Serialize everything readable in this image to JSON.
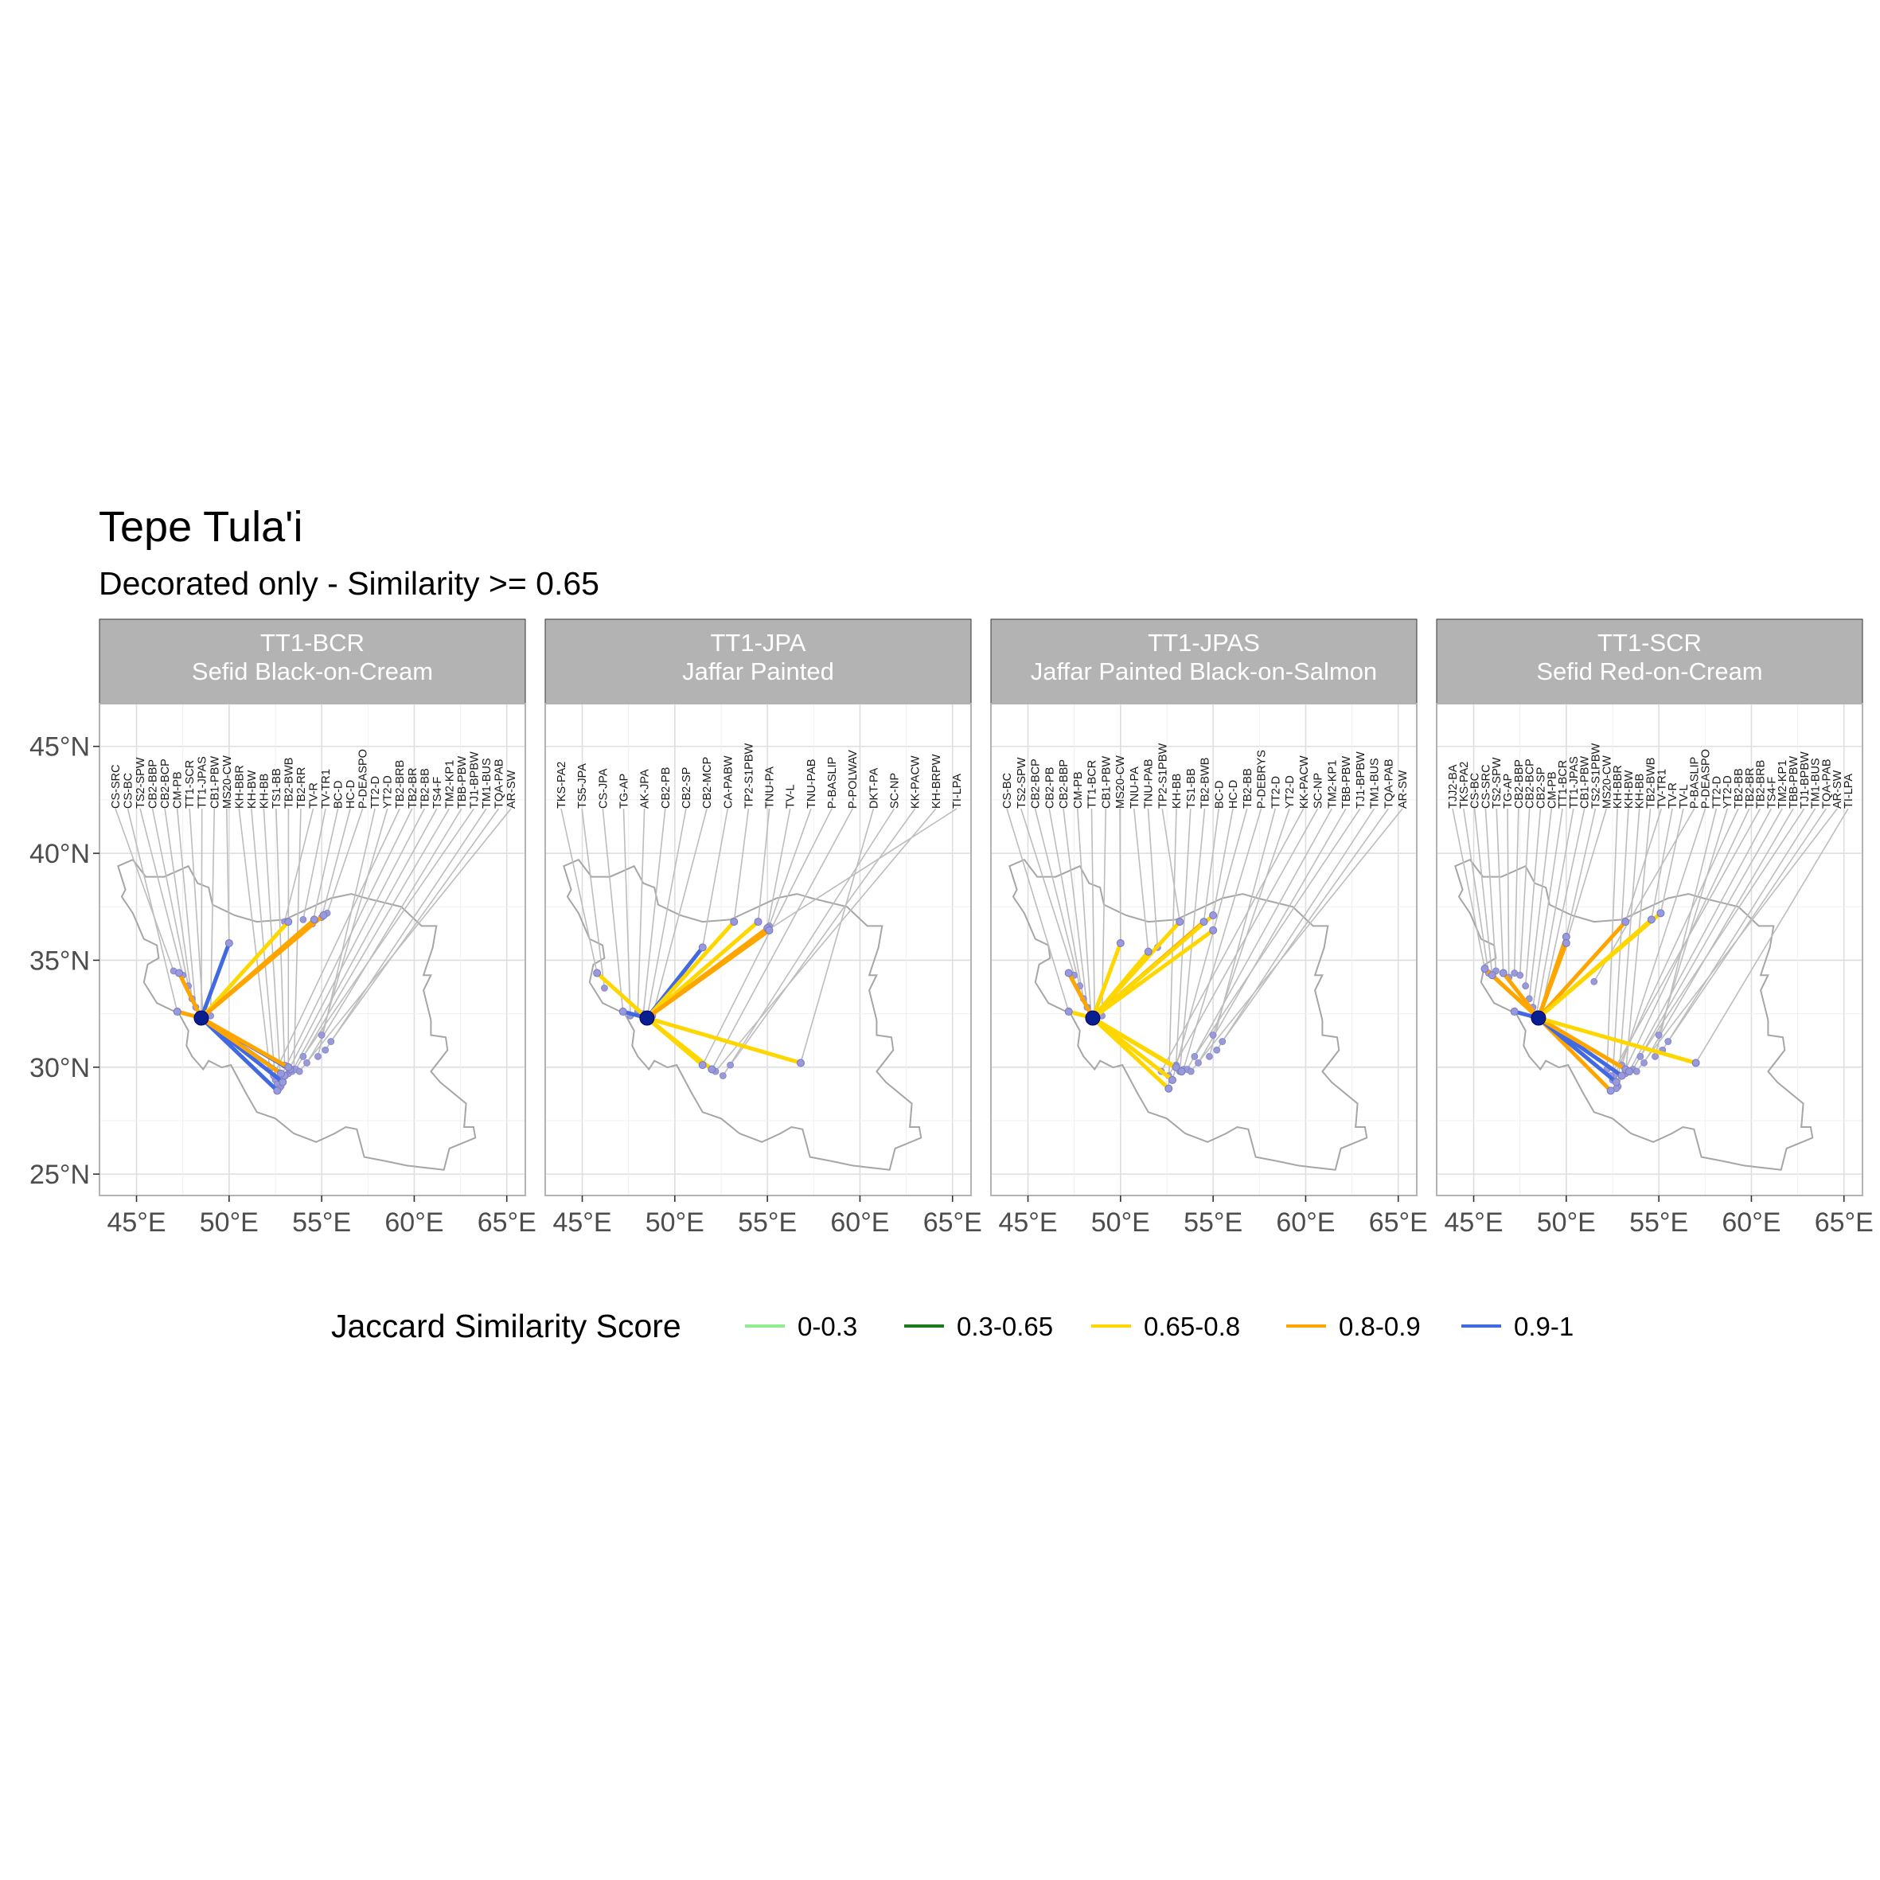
{
  "title": "Tepe Tula'i",
  "subtitle": "Decorated only - Similarity >= 0.65",
  "legend": {
    "title": "Jaccard Similarity Score",
    "items": [
      {
        "label": "0-0.3",
        "color": "#90ee90"
      },
      {
        "label": "0.3-0.65",
        "color": "#1b7a1b"
      },
      {
        "label": "0.65-0.8",
        "color": "#ffd700"
      },
      {
        "label": "0.8-0.9",
        "color": "#ffa500"
      },
      {
        "label": "0.9-1",
        "color": "#4169e1"
      }
    ]
  },
  "chart_data": [
    {
      "type": "map",
      "strip": [
        "TT1-BCR",
        "Sefid Black-on-Cream"
      ],
      "xlim": [
        43,
        66
      ],
      "ylim": [
        24,
        47
      ],
      "x_ticks": [
        "45°E",
        "50°E",
        "55°E",
        "60°E",
        "65°E"
      ],
      "y_ticks": [
        "25°N",
        "30°N",
        "35°N",
        "40°N",
        "45°N"
      ],
      "origin": {
        "lon": 48.5,
        "lat": 32.3
      },
      "labels": [
        "CS-SRC",
        "CS-BC",
        "TS2-SPW",
        "CB2-BBP",
        "CB2-BCP",
        "CM-PB",
        "TT1-SCR",
        "TT1-JPAS",
        "CB1-PBW",
        "MS20-CW",
        "KH-BBR",
        "KH-BW",
        "KH-BB",
        "TS1-BB",
        "TB2-BWB",
        "TB2-RR",
        "TV-R",
        "TV-TR1",
        "BC-D",
        "HC-D",
        "P-DEASPO",
        "TT2-D",
        "YT2-D",
        "TB2-BRB",
        "TB2-BR",
        "TB2-BB",
        "TS4-F",
        "TM2-KP1",
        "TBB-PBW",
        "TJ1-BPBW",
        "TM1-BUS",
        "TQA-PAB",
        "AR-SW"
      ],
      "sites": [
        [
          47.0,
          34.5
        ],
        [
          47.2,
          32.6
        ],
        [
          47.5,
          34.3
        ],
        [
          47.8,
          33.8
        ],
        [
          48.0,
          33.2
        ],
        [
          48.2,
          32.8
        ],
        [
          48.6,
          32.4
        ],
        [
          48.5,
          32.2
        ],
        [
          49.0,
          32.4
        ],
        [
          50.0,
          35.8
        ],
        [
          52.2,
          29.9
        ],
        [
          52.5,
          29.4
        ],
        [
          52.8,
          29.1
        ],
        [
          53.0,
          30.1
        ],
        [
          53.2,
          29.7
        ],
        [
          53.5,
          29.9
        ],
        [
          53.0,
          36.8
        ],
        [
          54.0,
          36.9
        ],
        [
          54.5,
          36.7
        ],
        [
          55.0,
          37.0
        ],
        [
          55.3,
          37.2
        ],
        [
          54.8,
          30.5
        ],
        [
          55.0,
          31.5
        ],
        [
          52.4,
          29.6
        ],
        [
          52.6,
          29.2
        ],
        [
          52.7,
          29.0
        ],
        [
          53.4,
          29.8
        ],
        [
          53.6,
          29.9
        ],
        [
          54.2,
          30.2
        ],
        [
          54.0,
          30.5
        ],
        [
          55.2,
          30.8
        ],
        [
          55.5,
          31.2
        ],
        [
          53.8,
          29.8
        ]
      ],
      "links": [
        {
          "lon": 50.0,
          "lat": 35.8,
          "score": 0.92
        },
        {
          "lon": 47.3,
          "lat": 34.4,
          "score": 0.85
        },
        {
          "lon": 47.2,
          "lat": 32.6,
          "score": 0.84
        },
        {
          "lon": 53.2,
          "lat": 36.8,
          "score": 0.75
        },
        {
          "lon": 54.6,
          "lat": 36.9,
          "score": 0.86
        },
        {
          "lon": 55.1,
          "lat": 37.1,
          "score": 0.82
        },
        {
          "lon": 52.6,
          "lat": 28.9,
          "score": 0.93
        },
        {
          "lon": 52.9,
          "lat": 29.3,
          "score": 0.91
        },
        {
          "lon": 53.0,
          "lat": 29.6,
          "score": 0.94
        },
        {
          "lon": 53.3,
          "lat": 29.9,
          "score": 0.92
        },
        {
          "lon": 52.8,
          "lat": 29.7,
          "score": 0.85
        },
        {
          "lon": 53.2,
          "lat": 30.0,
          "score": 0.83
        }
      ]
    },
    {
      "type": "map",
      "strip": [
        "TT1-JPA",
        "Jaffar Painted"
      ],
      "xlim": [
        43,
        66
      ],
      "ylim": [
        24,
        47
      ],
      "x_ticks": [
        "45°E",
        "50°E",
        "55°E",
        "60°E",
        "65°E"
      ],
      "y_ticks": [
        "25°N",
        "30°N",
        "35°N",
        "40°N",
        "45°N"
      ],
      "origin": {
        "lon": 48.5,
        "lat": 32.3
      },
      "labels": [
        "TKS-PA2",
        "TS5-JPA",
        "CS-JPA",
        "TG-AP",
        "AK-JPA",
        "CB2-PB",
        "CB2-SP",
        "CB2-MCP",
        "CA-PABW",
        "TP2-S1PBW",
        "TNU-PA",
        "TV-L",
        "TNU-PAB",
        "P-BASLIP",
        "P-POLWAV",
        "DKT-PA",
        "SC-NP",
        "KK-PACW",
        "KH-BRPW",
        "TI-LPA"
      ],
      "sites": [
        [
          45.8,
          34.4
        ],
        [
          46.2,
          33.7
        ],
        [
          47.2,
          32.6
        ],
        [
          47.6,
          32.4
        ],
        [
          48.0,
          32.6
        ],
        [
          48.3,
          32.5
        ],
        [
          48.5,
          32.3
        ],
        [
          48.8,
          32.4
        ],
        [
          51.5,
          35.6
        ],
        [
          53.2,
          36.8
        ],
        [
          54.5,
          36.8
        ],
        [
          55.0,
          36.5
        ],
        [
          55.1,
          36.6
        ],
        [
          51.5,
          30.1
        ],
        [
          52.0,
          29.9
        ],
        [
          56.8,
          30.2
        ],
        [
          52.6,
          29.6
        ],
        [
          53.0,
          30.1
        ],
        [
          52.2,
          29.8
        ],
        [
          55.0,
          36.4
        ]
      ],
      "links": [
        {
          "lon": 45.8,
          "lat": 34.4,
          "score": 0.72
        },
        {
          "lon": 47.2,
          "lat": 32.6,
          "score": 0.93
        },
        {
          "lon": 51.5,
          "lat": 35.6,
          "score": 0.92
        },
        {
          "lon": 53.2,
          "lat": 36.8,
          "score": 0.75
        },
        {
          "lon": 54.5,
          "lat": 36.8,
          "score": 0.72
        },
        {
          "lon": 55.0,
          "lat": 36.5,
          "score": 0.86
        },
        {
          "lon": 55.1,
          "lat": 36.4,
          "score": 0.84
        },
        {
          "lon": 51.5,
          "lat": 30.1,
          "score": 0.74
        },
        {
          "lon": 52.0,
          "lat": 29.9,
          "score": 0.78
        },
        {
          "lon": 56.8,
          "lat": 30.2,
          "score": 0.7
        }
      ]
    },
    {
      "type": "map",
      "strip": [
        "TT1-JPAS",
        "Jaffar Painted Black-on-Salmon"
      ],
      "xlim": [
        43,
        66
      ],
      "ylim": [
        24,
        47
      ],
      "x_ticks": [
        "45°E",
        "50°E",
        "55°E",
        "60°E",
        "65°E"
      ],
      "y_ticks": [
        "25°N",
        "30°N",
        "35°N",
        "40°N",
        "45°N"
      ],
      "origin": {
        "lon": 48.5,
        "lat": 32.3
      },
      "labels": [
        "CS-BC",
        "TS2-SPW",
        "CB2-BCP",
        "CB2-PB",
        "CB2-BBP",
        "CM-PB",
        "TT1-BCR",
        "CB1-PBW",
        "MS20-CW",
        "TNU-PA",
        "TNU-PAB",
        "TP2-S1PBW",
        "KH-BB",
        "TS1-BB",
        "TB2-BWB",
        "BC-D",
        "HC-D",
        "TB2-BB",
        "P-DEBRYS",
        "TT2-D",
        "YT2-D",
        "KK-PACW",
        "SC-NP",
        "TM2-KP1",
        "TBB-PBW",
        "TJ1-BPBW",
        "TM1-BUS",
        "TQA-PAB",
        "AR-SW"
      ],
      "sites": [
        [
          47.2,
          32.6
        ],
        [
          47.5,
          34.3
        ],
        [
          47.8,
          33.8
        ],
        [
          48.0,
          33.2
        ],
        [
          48.2,
          32.8
        ],
        [
          48.4,
          32.5
        ],
        [
          48.6,
          32.4
        ],
        [
          49.0,
          32.4
        ],
        [
          50.0,
          35.8
        ],
        [
          51.5,
          35.4
        ],
        [
          52.0,
          35.6
        ],
        [
          53.2,
          36.8
        ],
        [
          52.6,
          29.0
        ],
        [
          53.0,
          30.1
        ],
        [
          53.2,
          29.8
        ],
        [
          54.5,
          36.8
        ],
        [
          55.0,
          37.1
        ],
        [
          52.8,
          29.4
        ],
        [
          53.4,
          29.9
        ],
        [
          54.8,
          30.5
        ],
        [
          55.0,
          31.5
        ],
        [
          52.2,
          29.8
        ],
        [
          52.6,
          29.6
        ],
        [
          53.6,
          29.9
        ],
        [
          54.2,
          30.2
        ],
        [
          54.0,
          30.5
        ],
        [
          55.2,
          30.8
        ],
        [
          55.5,
          31.2
        ],
        [
          53.8,
          29.8
        ]
      ],
      "links": [
        {
          "lon": 47.2,
          "lat": 34.4,
          "score": 0.85
        },
        {
          "lon": 47.2,
          "lat": 32.6,
          "score": 0.72
        },
        {
          "lon": 50.0,
          "lat": 35.8,
          "score": 0.74
        },
        {
          "lon": 51.5,
          "lat": 35.4,
          "score": 0.76
        },
        {
          "lon": 53.2,
          "lat": 36.8,
          "score": 0.78
        },
        {
          "lon": 54.5,
          "lat": 36.8,
          "score": 0.82
        },
        {
          "lon": 55.0,
          "lat": 37.1,
          "score": 0.76
        },
        {
          "lon": 55.0,
          "lat": 36.4,
          "score": 0.7
        },
        {
          "lon": 52.6,
          "lat": 29.0,
          "score": 0.76
        },
        {
          "lon": 52.8,
          "lat": 29.4,
          "score": 0.72
        },
        {
          "lon": 53.0,
          "lat": 30.0,
          "score": 0.73
        },
        {
          "lon": 53.3,
          "lat": 29.8,
          "score": 0.75
        }
      ]
    },
    {
      "type": "map",
      "strip": [
        "TT1-SCR",
        "Sefid Red-on-Cream"
      ],
      "xlim": [
        43,
        66
      ],
      "ylim": [
        24,
        47
      ],
      "x_ticks": [
        "45°E",
        "50°E",
        "55°E",
        "60°E",
        "65°E"
      ],
      "y_ticks": [
        "25°N",
        "30°N",
        "35°N",
        "40°N",
        "45°N"
      ],
      "origin": {
        "lon": 48.5,
        "lat": 32.3
      },
      "labels": [
        "TJJ2-BA",
        "TKS-PA2",
        "CS-BC",
        "CS-SRC",
        "TS2-SPW",
        "TG-AP",
        "CB2-BBP",
        "CB2-BCP",
        "CB2-SP",
        "CM-PB",
        "TT1-BCR",
        "TT1-JPAS",
        "CB1-PBW",
        "TS2-S1PBW",
        "MS20-CW",
        "KH-BBR",
        "KH-BW",
        "KH-BB",
        "TB2-BWB",
        "TV-TR1",
        "TV-R",
        "TV-L",
        "P-BASLIP",
        "P-DEASPO",
        "TT2-D",
        "YT2-D",
        "TB2-BB",
        "TB2-BR",
        "TB2-BRB",
        "TS4-F",
        "TM2-KP1",
        "TBB-PBW",
        "TJ1-BPBW",
        "TM1-BUS",
        "TQA-PAB",
        "AR-SW",
        "TI-LPA"
      ],
      "sites": [
        [
          45.6,
          34.6
        ],
        [
          45.8,
          34.4
        ],
        [
          46.0,
          34.3
        ],
        [
          46.2,
          34.5
        ],
        [
          46.6,
          34.4
        ],
        [
          46.9,
          34.2
        ],
        [
          47.2,
          34.4
        ],
        [
          47.5,
          34.3
        ],
        [
          47.8,
          33.8
        ],
        [
          48.0,
          33.2
        ],
        [
          48.2,
          32.8
        ],
        [
          48.4,
          32.5
        ],
        [
          48.6,
          32.4
        ],
        [
          50.0,
          36.1
        ],
        [
          50.0,
          35.8
        ],
        [
          52.2,
          29.9
        ],
        [
          52.5,
          29.4
        ],
        [
          52.8,
          29.1
        ],
        [
          53.2,
          29.7
        ],
        [
          53.2,
          36.8
        ],
        [
          54.6,
          36.9
        ],
        [
          55.1,
          37.2
        ],
        [
          51.5,
          34.0
        ],
        [
          53.0,
          30.1
        ],
        [
          54.8,
          30.5
        ],
        [
          55.0,
          31.5
        ],
        [
          52.6,
          29.6
        ],
        [
          52.7,
          29.0
        ],
        [
          52.4,
          29.6
        ],
        [
          53.4,
          29.8
        ],
        [
          53.6,
          29.9
        ],
        [
          54.2,
          30.2
        ],
        [
          54.0,
          30.5
        ],
        [
          55.2,
          30.8
        ],
        [
          55.5,
          31.2
        ],
        [
          53.8,
          29.8
        ],
        [
          57.0,
          30.2
        ]
      ],
      "links": [
        {
          "lon": 45.6,
          "lat": 34.6,
          "score": 0.85
        },
        {
          "lon": 46.0,
          "lat": 34.3,
          "score": 0.84
        },
        {
          "lon": 46.6,
          "lat": 34.4,
          "score": 0.83
        },
        {
          "lon": 47.2,
          "lat": 32.6,
          "score": 0.92
        },
        {
          "lon": 50.0,
          "lat": 36.1,
          "score": 0.84
        },
        {
          "lon": 50.0,
          "lat": 35.8,
          "score": 0.82
        },
        {
          "lon": 53.2,
          "lat": 36.8,
          "score": 0.86
        },
        {
          "lon": 54.6,
          "lat": 36.9,
          "score": 0.76
        },
        {
          "lon": 55.1,
          "lat": 37.2,
          "score": 0.73
        },
        {
          "lon": 52.4,
          "lat": 28.9,
          "score": 0.85
        },
        {
          "lon": 52.7,
          "lat": 29.3,
          "score": 0.93
        },
        {
          "lon": 53.0,
          "lat": 29.6,
          "score": 0.92
        },
        {
          "lon": 53.2,
          "lat": 29.9,
          "score": 0.87
        },
        {
          "lon": 53.4,
          "lat": 29.8,
          "score": 0.84
        },
        {
          "lon": 57.0,
          "lat": 30.2,
          "score": 0.72
        }
      ]
    }
  ]
}
